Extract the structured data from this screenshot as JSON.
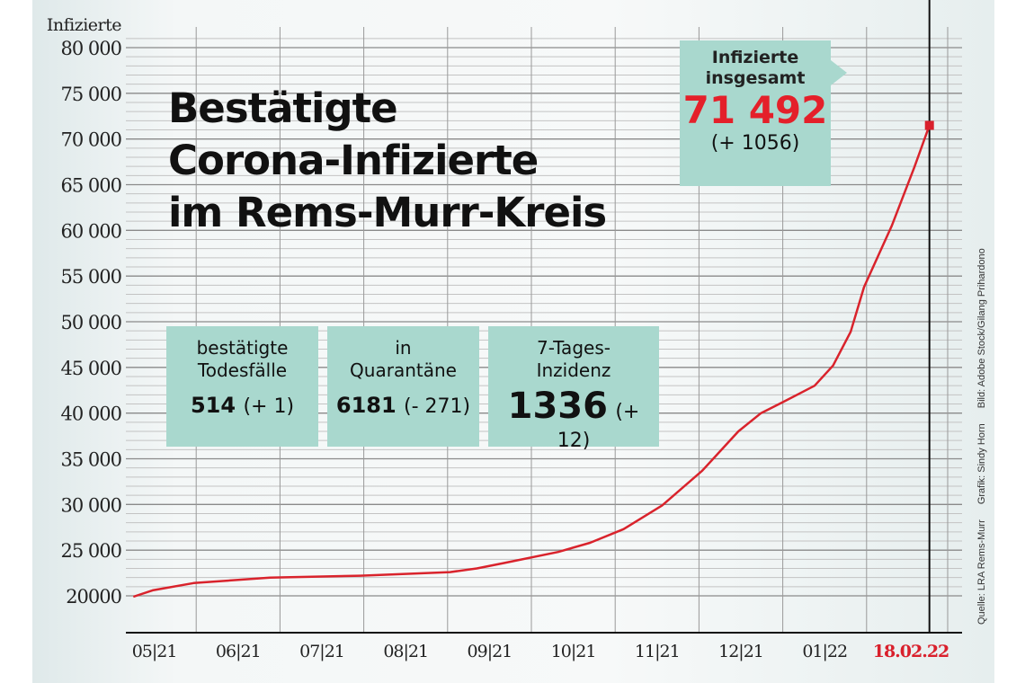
{
  "chart_data": {
    "type": "line",
    "title": "Bestätigte Corona-Infizierte im Rems-Murr-Kreis",
    "title_lines": [
      "Bestätigte",
      "Corona-Infizierte",
      "im Rems-Murr-Kreis"
    ],
    "ylabel": "Infizierte",
    "xlabel": "",
    "ylim": [
      19000,
      81000
    ],
    "y_ticks": [
      20000,
      25000,
      30000,
      35000,
      40000,
      45000,
      50000,
      55000,
      60000,
      65000,
      70000,
      75000,
      80000
    ],
    "y_tick_labels": [
      "20000",
      "25 000",
      "30 000",
      "35 000",
      "40 000",
      "45 000",
      "50 000",
      "55 000",
      "60 000",
      "65 000",
      "70 000",
      "75 000",
      "80 000"
    ],
    "x_unit": "months since 01.05.2021",
    "xlim": [
      0.2,
      10.0
    ],
    "x_tick_labels": [
      "05|21",
      "06|21",
      "07|21",
      "08|21",
      "09|21",
      "10|21",
      "11|21",
      "12|21",
      "01|22"
    ],
    "x_highlight_label": "18.02.22",
    "highlight_color": "#d9202c",
    "line_color": "#d9232c",
    "grid": true,
    "series": [
      {
        "name": "Infizierte",
        "x": [
          0.25,
          0.48,
          0.97,
          1.88,
          2.96,
          4.03,
          4.35,
          4.68,
          5.32,
          5.7,
          6.1,
          6.56,
          7.04,
          7.47,
          7.74,
          8.0,
          8.38,
          8.6,
          8.81,
          8.97,
          9.3,
          9.57,
          9.75
        ],
        "y": [
          19900,
          20600,
          21400,
          22000,
          22200,
          22600,
          23000,
          23600,
          24800,
          25800,
          27300,
          29900,
          33700,
          38000,
          40000,
          41200,
          43000,
          45200,
          48900,
          53800,
          60500,
          66900,
          71492
        ]
      }
    ],
    "annotation": {
      "label_lines": [
        "Infizierte",
        "insgesamt"
      ],
      "value": "71 492",
      "change": "(+ 1056)"
    }
  },
  "stats": [
    {
      "label_lines": [
        "bestätigte",
        "Todesfälle"
      ],
      "value": "514",
      "change": "(+ 1)"
    },
    {
      "label_lines": [
        "in",
        "Quarantäne"
      ],
      "value": "6181",
      "change": "(- 271)"
    },
    {
      "label_lines": [
        "7-Tages-",
        "Inzidenz"
      ],
      "value": "1336",
      "change": "(+ 12)"
    }
  ],
  "credits": [
    "Quelle: LRA Rems-Murr",
    "Grafik: Sindy Horn",
    "Bild: Adobe Stock/Gilang Prihardono"
  ]
}
